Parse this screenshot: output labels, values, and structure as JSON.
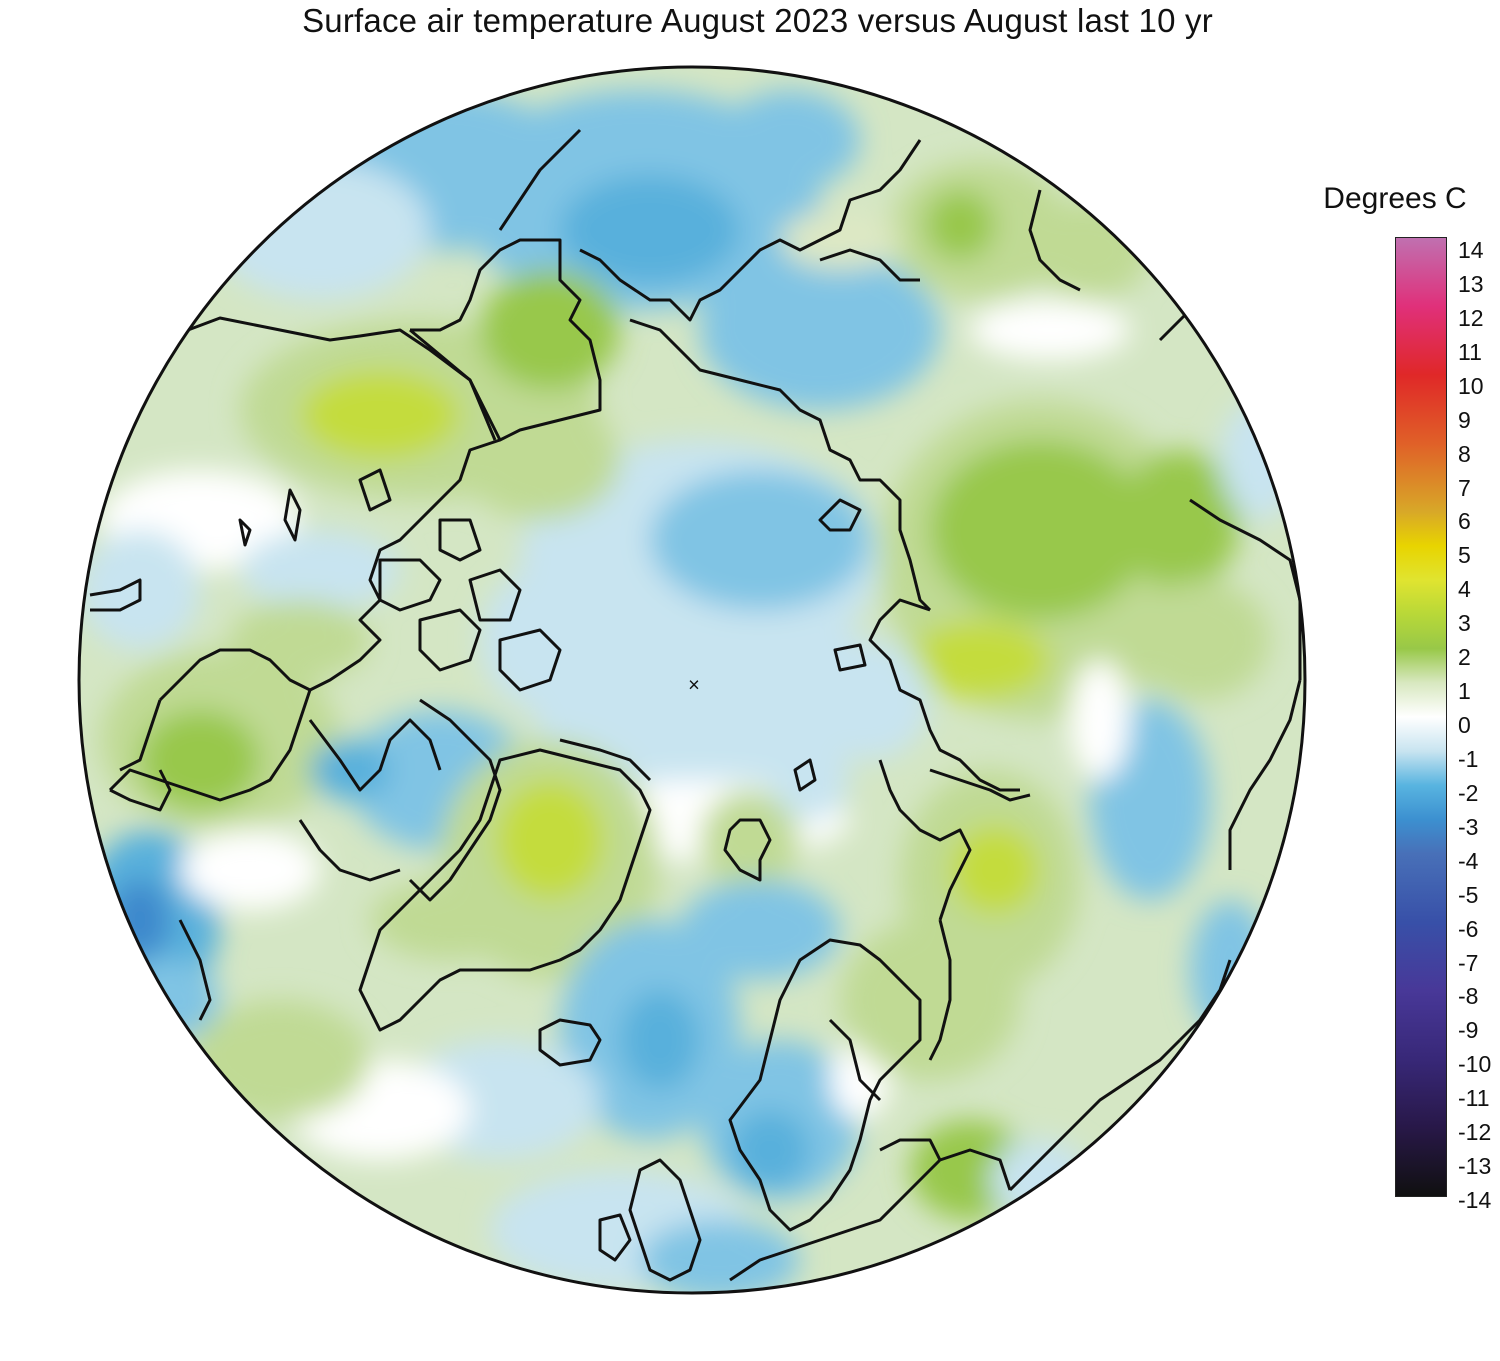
{
  "title": "Surface air temperature August 2023 versus August last 10 yr",
  "legend": {
    "title": "Degrees C",
    "min": -14,
    "max": 14,
    "tick_labels": [
      "14",
      "13",
      "12",
      "11",
      "10",
      "9",
      "8",
      "7",
      "6",
      "5",
      "4",
      "3",
      "2",
      "1",
      "0",
      "-1",
      "-2",
      "-3",
      "-4",
      "-5",
      "-6",
      "-7",
      "-8",
      "-9",
      "-10",
      "-11",
      "-12",
      "-13",
      "-14"
    ],
    "color_stops": [
      {
        "value": 14,
        "color": "#c070b0"
      },
      {
        "value": 12,
        "color": "#e0307a"
      },
      {
        "value": 10,
        "color": "#e02828"
      },
      {
        "value": 8,
        "color": "#e06028"
      },
      {
        "value": 6,
        "color": "#d8a828"
      },
      {
        "value": 5,
        "color": "#e8d400"
      },
      {
        "value": 4,
        "color": "#e0e430"
      },
      {
        "value": 3,
        "color": "#b8d838"
      },
      {
        "value": 2,
        "color": "#98c848"
      },
      {
        "value": 1,
        "color": "#d8e8c0"
      },
      {
        "value": 0,
        "color": "#ffffff"
      },
      {
        "value": -1,
        "color": "#c8e4f0"
      },
      {
        "value": -2,
        "color": "#58b4e0"
      },
      {
        "value": -3,
        "color": "#3c90d0"
      },
      {
        "value": -4,
        "color": "#4870b8"
      },
      {
        "value": -6,
        "color": "#3850a8"
      },
      {
        "value": -8,
        "color": "#483898"
      },
      {
        "value": -10,
        "color": "#382878"
      },
      {
        "value": -12,
        "color": "#281848"
      },
      {
        "value": -14,
        "color": "#101010"
      }
    ]
  },
  "map": {
    "projection": "north-polar-stereographic",
    "pole_marker": "×",
    "colors": {
      "light_blue": "#c8e4f0",
      "mid_blue": "#80c4e4",
      "blue": "#58b0dc",
      "deep_blue": "#3c88cc",
      "white": "#ffffff",
      "pale_green": "#dde8c4",
      "light_green": "#c0da94",
      "green": "#98c84c",
      "yellow_green": "#c4dc3c",
      "yellow": "#e4e838",
      "coast": "#111111"
    }
  }
}
